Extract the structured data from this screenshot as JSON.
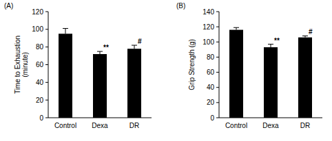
{
  "chart_data": [
    {
      "type": "bar",
      "title": "(A)",
      "y_label": "Time to Exhaustion\n(minute)",
      "categories": [
        "Control",
        "Dexa",
        "DR"
      ],
      "values": [
        95,
        72,
        78
      ],
      "errors": [
        6,
        3,
        4
      ],
      "significance": [
        null,
        "**",
        "#"
      ],
      "color": "#000000",
      "ylim": [
        0,
        120
      ],
      "yticks": [
        0,
        20,
        40,
        60,
        80,
        100,
        120
      ],
      "grid": false
    },
    {
      "type": "bar",
      "title": "(B)",
      "y_label": "Grip Strength (g)",
      "categories": [
        "Control",
        "Dexa",
        "DR"
      ],
      "values": [
        116,
        93,
        106
      ],
      "errors": [
        3,
        4,
        2
      ],
      "significance": [
        null,
        "**",
        "#"
      ],
      "color": "#000000",
      "ylim": [
        0,
        140
      ],
      "yticks": [
        0,
        20,
        40,
        60,
        80,
        100,
        120,
        140
      ],
      "grid": false
    }
  ]
}
